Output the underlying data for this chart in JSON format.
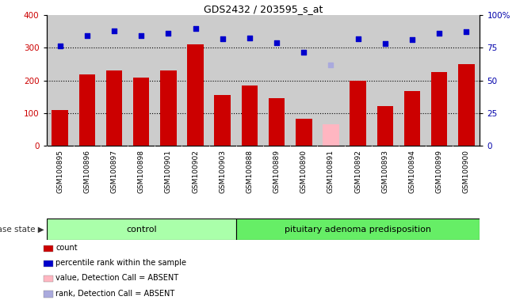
{
  "title": "GDS2432 / 203595_s_at",
  "samples": [
    "GSM100895",
    "GSM100896",
    "GSM100897",
    "GSM100898",
    "GSM100901",
    "GSM100902",
    "GSM100903",
    "GSM100888",
    "GSM100889",
    "GSM100890",
    "GSM100891",
    "GSM100892",
    "GSM100893",
    "GSM100894",
    "GSM100899",
    "GSM100900"
  ],
  "bar_values": [
    110,
    220,
    230,
    210,
    230,
    310,
    157,
    185,
    145,
    83,
    65,
    200,
    122,
    167,
    225,
    250
  ],
  "bar_colors": [
    "#cc0000",
    "#cc0000",
    "#cc0000",
    "#cc0000",
    "#cc0000",
    "#cc0000",
    "#cc0000",
    "#cc0000",
    "#cc0000",
    "#cc0000",
    "#ffb6c1",
    "#cc0000",
    "#cc0000",
    "#cc0000",
    "#cc0000",
    "#cc0000"
  ],
  "dot_values": [
    305,
    338,
    352,
    337,
    345,
    360,
    327,
    330,
    315,
    287,
    248,
    328,
    313,
    325,
    345,
    350
  ],
  "dot_colors": [
    "#0000cc",
    "#0000cc",
    "#0000cc",
    "#0000cc",
    "#0000cc",
    "#0000cc",
    "#0000cc",
    "#0000cc",
    "#0000cc",
    "#0000cc",
    "#aaaadd",
    "#0000cc",
    "#0000cc",
    "#0000cc",
    "#0000cc",
    "#0000cc"
  ],
  "ylim_left": [
    0,
    400
  ],
  "ylim_right": [
    0,
    100
  ],
  "yticks_left": [
    0,
    100,
    200,
    300,
    400
  ],
  "yticks_right": [
    0,
    25,
    50,
    75,
    100
  ],
  "group_control_count": 7,
  "group_control_label": "control",
  "group_disease_label": "pituitary adenoma predisposition",
  "disease_state_label": "disease state",
  "legend_items": [
    {
      "label": "count",
      "color": "#cc0000"
    },
    {
      "label": "percentile rank within the sample",
      "color": "#0000cc"
    },
    {
      "label": "value, Detection Call = ABSENT",
      "color": "#ffb6c1"
    },
    {
      "label": "rank, Detection Call = ABSENT",
      "color": "#aaaadd"
    }
  ],
  "plot_bg_color": "#cccccc",
  "xlabels_bg_color": "#cccccc",
  "control_group_color": "#aaffaa",
  "disease_group_color": "#66ee66",
  "bar_width": 0.6
}
